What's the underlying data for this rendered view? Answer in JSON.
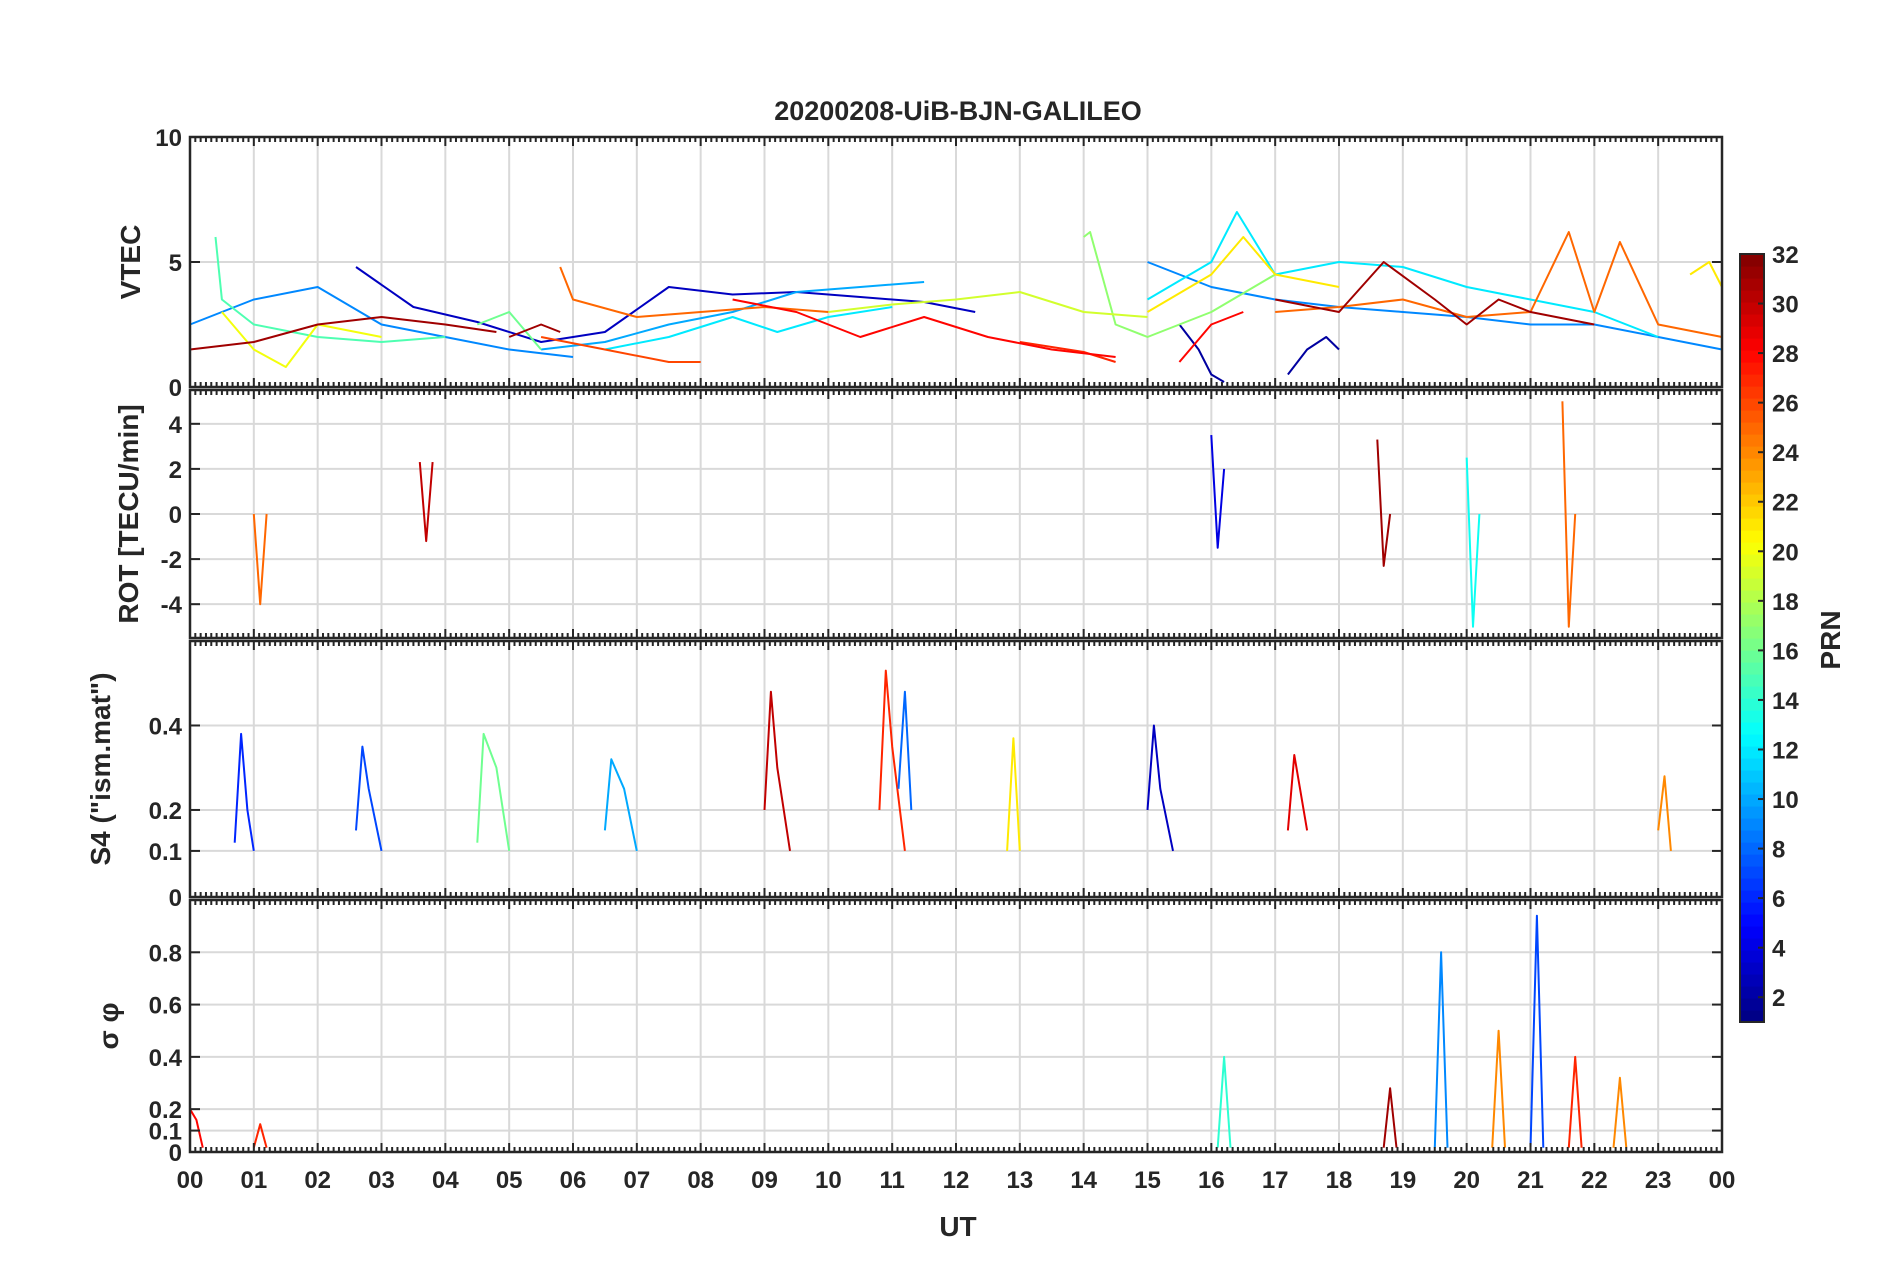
{
  "chart_data": {
    "type": "line",
    "title": "20200208-UiB-BJN-GALILEO",
    "xlabel": "UT",
    "x_range_hours": [
      0,
      24
    ],
    "x_tick_labels": [
      "00",
      "01",
      "02",
      "03",
      "04",
      "05",
      "06",
      "07",
      "08",
      "09",
      "10",
      "11",
      "12",
      "13",
      "14",
      "15",
      "16",
      "17",
      "18",
      "19",
      "20",
      "21",
      "22",
      "23",
      "00"
    ],
    "grid": true,
    "colorbar": {
      "label": "PRN",
      "range": [
        1,
        32
      ],
      "tick_labels": [
        "2",
        "4",
        "6",
        "8",
        "10",
        "12",
        "14",
        "16",
        "18",
        "20",
        "22",
        "24",
        "26",
        "28",
        "30",
        "32"
      ],
      "colormap": "jet",
      "placement": "right"
    },
    "panels": [
      {
        "id": "vtec",
        "ylabel": "VTEC",
        "ylim": [
          0,
          10
        ],
        "y_ticks": [
          0,
          5,
          10
        ],
        "y_tick_labels": [
          "0",
          "5",
          "10"
        ],
        "series": [
          {
            "prn": 3,
            "x": [
              2.6,
              3.5,
              4.5,
              5.5,
              6.5,
              7.5,
              8.5,
              9.5,
              10.5,
              11.5,
              12.3
            ],
            "y": [
              4.8,
              3.2,
              2.6,
              1.8,
              2.2,
              4.0,
              3.7,
              3.8,
              3.6,
              3.4,
              3.0
            ]
          },
          {
            "prn": 2,
            "x": [
              15.5,
              15.8,
              16.0,
              16.2
            ],
            "y": [
              2.5,
              1.5,
              0.5,
              0.2
            ]
          },
          {
            "prn": 2,
            "x": [
              17.2,
              17.5,
              17.8,
              18.0
            ],
            "y": [
              0.5,
              1.5,
              2.0,
              1.5
            ]
          },
          {
            "prn": 9,
            "x": [
              0.0,
              1.0,
              2.0,
              3.0,
              4.0,
              5.0,
              6.0
            ],
            "y": [
              2.5,
              3.5,
              4.0,
              2.5,
              2.0,
              1.5,
              1.2
            ]
          },
          {
            "prn": 9,
            "x": [
              15.0,
              16.0,
              17.0,
              18.0,
              19.0,
              20.0,
              21.0,
              22.0,
              23.0,
              24.0
            ],
            "y": [
              5.0,
              4.0,
              3.5,
              3.2,
              3.0,
              2.8,
              2.5,
              2.5,
              2.0,
              1.5
            ]
          },
          {
            "prn": 10,
            "x": [
              5.5,
              6.5,
              7.5,
              8.5,
              9.5,
              10.5,
              11.5
            ],
            "y": [
              1.5,
              1.8,
              2.5,
              3.0,
              3.8,
              4.0,
              4.2
            ]
          },
          {
            "prn": 12,
            "x": [
              6.5,
              7.5,
              8.5,
              9.2,
              10.0,
              11.0
            ],
            "y": [
              1.5,
              2.0,
              2.8,
              2.2,
              2.8,
              3.2
            ]
          },
          {
            "prn": 12,
            "x": [
              15.0,
              16.0,
              16.4,
              17.0,
              18.0,
              19.0,
              20.0,
              21.0,
              22.0,
              23.0
            ],
            "y": [
              3.5,
              5.0,
              7.0,
              4.5,
              5.0,
              4.8,
              4.0,
              3.5,
              3.0,
              2.0
            ]
          },
          {
            "prn": 15,
            "x": [
              0.4,
              0.5,
              1.0,
              2.0,
              3.0,
              4.0
            ],
            "y": [
              6.0,
              3.5,
              2.5,
              2.0,
              1.8,
              2.0
            ]
          },
          {
            "prn": 16,
            "x": [
              4.5,
              5.0,
              5.5
            ],
            "y": [
              2.5,
              3.0,
              1.5
            ]
          },
          {
            "prn": 17,
            "x": [
              14.0,
              14.1,
              14.5,
              15.0,
              16.0,
              17.0
            ],
            "y": [
              6.0,
              6.2,
              2.5,
              2.0,
              3.0,
              4.5
            ]
          },
          {
            "prn": 19,
            "x": [
              10.0,
              11.0,
              12.0,
              13.0,
              14.0,
              15.0
            ],
            "y": [
              3.0,
              3.3,
              3.5,
              3.8,
              3.0,
              2.8
            ]
          },
          {
            "prn": 20,
            "x": [
              0.5,
              1.0,
              1.5,
              2.0,
              3.0
            ],
            "y": [
              3.0,
              1.5,
              0.8,
              2.5,
              2.0
            ]
          },
          {
            "prn": 21,
            "x": [
              15.0,
              16.0,
              16.5,
              17.0,
              18.0
            ],
            "y": [
              3.0,
              4.5,
              6.0,
              4.5,
              4.0
            ]
          },
          {
            "prn": 21,
            "x": [
              23.5,
              23.8,
              24.0
            ],
            "y": [
              4.5,
              5.0,
              4.0
            ]
          },
          {
            "prn": 25,
            "x": [
              5.8,
              6.0,
              7.0,
              8.0,
              9.0,
              10.0
            ],
            "y": [
              4.8,
              3.5,
              2.8,
              3.0,
              3.2,
              3.0
            ]
          },
          {
            "prn": 25,
            "x": [
              17.0,
              18.0,
              19.0,
              20.0,
              21.0,
              21.6,
              22.0,
              22.4,
              23.0,
              24.0
            ],
            "y": [
              3.0,
              3.2,
              3.5,
              2.8,
              3.0,
              6.2,
              3.0,
              5.8,
              2.5,
              2.0
            ]
          },
          {
            "prn": 26,
            "x": [
              5.5,
              6.5,
              7.5,
              8.0
            ],
            "y": [
              2.0,
              1.5,
              1.0,
              1.0
            ]
          },
          {
            "prn": 27,
            "x": [
              13.0,
              14.0,
              14.5
            ],
            "y": [
              1.8,
              1.4,
              1.0
            ]
          },
          {
            "prn": 28,
            "x": [
              8.5,
              9.5,
              10.5,
              11.5,
              12.5,
              13.5,
              14.5
            ],
            "y": [
              3.5,
              3.0,
              2.0,
              2.8,
              2.0,
              1.5,
              1.2
            ]
          },
          {
            "prn": 28,
            "x": [
              15.5,
              16.0,
              16.5
            ],
            "y": [
              1.0,
              2.5,
              3.0
            ]
          },
          {
            "prn": 31,
            "x": [
              0.0,
              1.0,
              2.0,
              3.0,
              4.0,
              4.8
            ],
            "y": [
              1.5,
              1.8,
              2.5,
              2.8,
              2.5,
              2.2
            ]
          },
          {
            "prn": 31,
            "x": [
              5.0,
              5.5,
              5.8
            ],
            "y": [
              2.0,
              2.5,
              2.2
            ]
          },
          {
            "prn": 31,
            "x": [
              17.0,
              18.0,
              18.7,
              19.5,
              20.0,
              20.5,
              21.0,
              22.0
            ],
            "y": [
              3.5,
              3.0,
              5.0,
              3.5,
              2.5,
              3.5,
              3.0,
              2.5
            ]
          }
        ]
      },
      {
        "id": "rot",
        "ylabel": "ROT [TECU/min]",
        "ylim": [
          -5.5,
          5.5
        ],
        "y_ticks": [
          -4,
          -2,
          0,
          2,
          4
        ],
        "y_tick_labels": [
          "-4",
          "-2",
          "0",
          "2",
          "4"
        ],
        "series": [
          {
            "prn": 25,
            "x": [
              1.0,
              1.1,
              1.2
            ],
            "y": [
              0,
              -4.0,
              0
            ]
          },
          {
            "prn": 30,
            "x": [
              3.6,
              3.7,
              3.8
            ],
            "y": [
              2.3,
              -1.2,
              2.3
            ]
          },
          {
            "prn": 4,
            "x": [
              16.0,
              16.1,
              16.2
            ],
            "y": [
              3.5,
              -1.5,
              2.0
            ]
          },
          {
            "prn": 13,
            "x": [
              20.0,
              20.1,
              20.2
            ],
            "y": [
              2.5,
              -5.0,
              0
            ]
          },
          {
            "prn": 25,
            "x": [
              21.5,
              21.6,
              21.7
            ],
            "y": [
              5.0,
              -5.0,
              0
            ]
          },
          {
            "prn": 31,
            "x": [
              18.6,
              18.7,
              18.8
            ],
            "y": [
              3.3,
              -2.3,
              0
            ]
          }
        ]
      },
      {
        "id": "s4",
        "ylabel": "S4 (\"ism.mat\")",
        "ylim": [
          0,
          0.6
        ],
        "y_ticks": [
          0,
          0.1,
          0.2,
          0.4
        ],
        "y_tick_labels": [
          "0",
          "0.1",
          "0.2",
          "0.4"
        ],
        "series": [
          {
            "prn": 6,
            "x": [
              0.7,
              0.8,
              0.9,
              1.0
            ],
            "y": [
              0.12,
              0.38,
              0.2,
              0.1
            ]
          },
          {
            "prn": 7,
            "x": [
              2.6,
              2.7,
              2.8,
              3.0
            ],
            "y": [
              0.15,
              0.35,
              0.25,
              0.1
            ]
          },
          {
            "prn": 16,
            "x": [
              4.5,
              4.6,
              4.8,
              5.0
            ],
            "y": [
              0.12,
              0.38,
              0.3,
              0.1
            ]
          },
          {
            "prn": 10,
            "x": [
              6.5,
              6.6,
              6.8,
              7.0
            ],
            "y": [
              0.15,
              0.32,
              0.25,
              0.1
            ]
          },
          {
            "prn": 30,
            "x": [
              9.0,
              9.1,
              9.2,
              9.4
            ],
            "y": [
              0.2,
              0.48,
              0.3,
              0.1
            ]
          },
          {
            "prn": 27,
            "x": [
              10.8,
              10.9,
              11.0,
              11.2
            ],
            "y": [
              0.2,
              0.53,
              0.35,
              0.1
            ]
          },
          {
            "prn": 8,
            "x": [
              11.1,
              11.2,
              11.3
            ],
            "y": [
              0.25,
              0.48,
              0.2
            ]
          },
          {
            "prn": 21,
            "x": [
              12.8,
              12.9,
              13.0
            ],
            "y": [
              0.1,
              0.37,
              0.1
            ]
          },
          {
            "prn": 3,
            "x": [
              15.0,
              15.1,
              15.2,
              15.4
            ],
            "y": [
              0.2,
              0.4,
              0.25,
              0.1
            ]
          },
          {
            "prn": 29,
            "x": [
              17.2,
              17.3,
              17.5
            ],
            "y": [
              0.15,
              0.33,
              0.15
            ]
          },
          {
            "prn": 24,
            "x": [
              23.0,
              23.1,
              23.2
            ],
            "y": [
              0.15,
              0.28,
              0.1
            ]
          }
        ]
      },
      {
        "id": "sigma_phi",
        "ylabel": "σ φ",
        "ylim": [
          0,
          1.0
        ],
        "y_ticks": [
          0,
          0.1,
          0.2,
          0.4,
          0.6,
          0.8
        ],
        "y_tick_labels": [
          "0",
          "0.1",
          "0.2",
          "0.4",
          "0.6",
          "0.8"
        ],
        "series": [
          {
            "prn": 28,
            "x": [
              0.0,
              0.1,
              0.2
            ],
            "y": [
              0.2,
              0.15,
              0.02
            ]
          },
          {
            "prn": 27,
            "x": [
              1.0,
              1.1,
              1.2
            ],
            "y": [
              0.02,
              0.13,
              0.02
            ]
          },
          {
            "prn": 14,
            "x": [
              16.1,
              16.2,
              16.3
            ],
            "y": [
              0.02,
              0.4,
              0.02
            ]
          },
          {
            "prn": 31,
            "x": [
              18.7,
              18.8,
              18.9
            ],
            "y": [
              0.02,
              0.28,
              0.02
            ]
          },
          {
            "prn": 9,
            "x": [
              19.5,
              19.6,
              19.7
            ],
            "y": [
              0.02,
              0.8,
              0.02
            ]
          },
          {
            "prn": 24,
            "x": [
              20.4,
              20.5,
              20.6
            ],
            "y": [
              0.02,
              0.5,
              0.02
            ]
          },
          {
            "prn": 7,
            "x": [
              21.0,
              21.1,
              21.2
            ],
            "y": [
              0.02,
              0.94,
              0.02
            ]
          },
          {
            "prn": 27,
            "x": [
              21.6,
              21.7,
              21.8
            ],
            "y": [
              0.02,
              0.4,
              0.02
            ]
          },
          {
            "prn": 24,
            "x": [
              22.3,
              22.4,
              22.5
            ],
            "y": [
              0.02,
              0.32,
              0.02
            ]
          }
        ]
      }
    ]
  }
}
